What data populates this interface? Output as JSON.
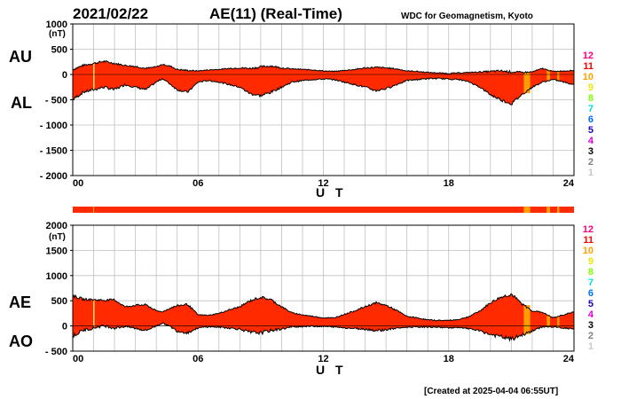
{
  "header": {
    "date": "2021/02/22",
    "title": "AE(11) (Real-Time)",
    "institution": "WDC for Geomagnetism, Kyoto"
  },
  "footer": {
    "created": "[Created at 2025-04-04 06:55UT]"
  },
  "side_labels": {
    "au": "AU",
    "al": "AL",
    "ae": "AE",
    "ao": "AO"
  },
  "legend": {
    "labels": [
      "12",
      "11",
      "10",
      "9",
      "8",
      "7",
      "6",
      "5",
      "4",
      "3",
      "2",
      "1"
    ],
    "colors": [
      "#ff0080",
      "#ff0000",
      "#ffa000",
      "#e8e800",
      "#80ff00",
      "#00e0e0",
      "#0070ff",
      "#2000c0",
      "#e000e0",
      "#000000",
      "#808080",
      "#c8c8c8"
    ]
  },
  "colors": {
    "fill": "#ff2a00",
    "orange": "#ffa000",
    "yellow": "#ffe070",
    "line": "#000000",
    "grid": "#c0c0c0"
  },
  "chart_data": [
    {
      "type": "area",
      "title": "AU / AL",
      "unit": "(nT)",
      "xlabel": "U T",
      "xlim": [
        0,
        24
      ],
      "xtick_labels": [
        "00",
        "06",
        "12",
        "18",
        "24"
      ],
      "ylim": [
        -2000,
        1000
      ],
      "ytick_labels": [
        "1000",
        "500",
        "0",
        "- 500",
        "- 1000",
        "- 1500",
        "- 2000"
      ],
      "x": [
        0,
        0.5,
        1,
        1.5,
        2,
        2.5,
        3,
        3.5,
        4,
        4.3,
        4.7,
        5,
        5.5,
        6,
        6.5,
        7,
        7.5,
        8,
        8.5,
        9,
        9.5,
        10,
        10.5,
        11,
        11.5,
        12,
        12.5,
        13,
        13.5,
        14,
        14.5,
        15,
        15.5,
        16,
        16.5,
        17,
        17.5,
        18,
        18.5,
        19,
        19.5,
        20,
        20.5,
        21,
        21.5,
        22,
        22.5,
        22.8,
        23,
        23.5,
        24
      ],
      "series": [
        {
          "name": "AU",
          "values": [
            100,
            180,
            220,
            260,
            220,
            180,
            160,
            120,
            150,
            200,
            160,
            100,
            80,
            70,
            90,
            100,
            120,
            130,
            120,
            150,
            170,
            130,
            110,
            100,
            90,
            70,
            60,
            80,
            100,
            130,
            140,
            130,
            110,
            70,
            60,
            40,
            30,
            20,
            30,
            40,
            50,
            60,
            70,
            50,
            40,
            50,
            120,
            80,
            60,
            70,
            80
          ]
        },
        {
          "name": "AL",
          "values": [
            -500,
            -350,
            -300,
            -250,
            -300,
            -200,
            -250,
            -300,
            -150,
            -80,
            -200,
            -300,
            -350,
            -150,
            -120,
            -150,
            -200,
            -250,
            -380,
            -420,
            -350,
            -250,
            -150,
            -120,
            -100,
            -90,
            -100,
            -150,
            -200,
            -250,
            -320,
            -280,
            -200,
            -120,
            -100,
            -80,
            -80,
            -90,
            -100,
            -150,
            -250,
            -400,
            -500,
            -580,
            -400,
            -250,
            -150,
            -120,
            -100,
            -150,
            -200
          ]
        }
      ]
    },
    {
      "type": "area",
      "title": "AE / AO",
      "unit": "(nT)",
      "xlabel": "U T",
      "xlim": [
        0,
        24
      ],
      "xtick_labels": [
        "00",
        "06",
        "12",
        "18",
        "24"
      ],
      "ylim": [
        -500,
        2000
      ],
      "ytick_labels": [
        "2000",
        "1500",
        "1000",
        "500",
        "0",
        "- 500"
      ],
      "x": [
        0,
        0.5,
        1,
        1.5,
        2,
        2.5,
        3,
        3.5,
        4,
        4.3,
        4.7,
        5,
        5.5,
        6,
        6.5,
        7,
        7.5,
        8,
        8.5,
        9,
        9.5,
        10,
        10.5,
        11,
        11.5,
        12,
        12.5,
        13,
        13.5,
        14,
        14.5,
        15,
        15.5,
        16,
        16.5,
        17,
        17.5,
        18,
        18.5,
        19,
        19.5,
        20,
        20.5,
        21,
        21.5,
        22,
        22.5,
        22.8,
        23,
        23.5,
        24
      ],
      "series": [
        {
          "name": "AE",
          "values": [
            600,
            530,
            520,
            510,
            520,
            380,
            410,
            420,
            300,
            280,
            360,
            400,
            430,
            220,
            210,
            250,
            320,
            380,
            500,
            570,
            520,
            380,
            260,
            220,
            190,
            160,
            160,
            230,
            300,
            380,
            460,
            410,
            310,
            190,
            160,
            120,
            110,
            110,
            130,
            190,
            300,
            460,
            570,
            630,
            440,
            300,
            270,
            200,
            160,
            220,
            280
          ]
        },
        {
          "name": "AO",
          "values": [
            -200,
            -85,
            -40,
            5,
            -40,
            -10,
            -45,
            -90,
            0,
            60,
            -20,
            -100,
            -135,
            -40,
            -15,
            -25,
            -40,
            -60,
            -130,
            -135,
            -90,
            -60,
            -20,
            -10,
            -5,
            -10,
            -20,
            -35,
            -50,
            -60,
            -90,
            -75,
            -45,
            -25,
            -20,
            -20,
            -25,
            -35,
            -35,
            -55,
            -100,
            -170,
            -215,
            -265,
            -180,
            -100,
            -15,
            -20,
            -20,
            -40,
            -60
          ]
        }
      ],
      "activity_bar_segments": [
        {
          "from": 0,
          "to": 0.98,
          "color": "#ff2a00"
        },
        {
          "from": 0.98,
          "to": 1.02,
          "color": "#ffa000"
        },
        {
          "from": 1.02,
          "to": 21.6,
          "color": "#ff2a00"
        },
        {
          "from": 21.6,
          "to": 21.9,
          "color": "#ffa000"
        },
        {
          "from": 21.9,
          "to": 22.7,
          "color": "#ff2a00"
        },
        {
          "from": 22.7,
          "to": 22.85,
          "color": "#ffa000"
        },
        {
          "from": 22.85,
          "to": 23.2,
          "color": "#ff2a00"
        },
        {
          "from": 23.2,
          "to": 23.3,
          "color": "#ffa000"
        },
        {
          "from": 23.3,
          "to": 24,
          "color": "#ff2a00"
        }
      ],
      "highlight_spans": [
        {
          "from": 0.98,
          "to": 1.02,
          "color": "#ffe070"
        },
        {
          "from": 21.6,
          "to": 21.9,
          "color": "#ffa000"
        },
        {
          "from": 22.7,
          "to": 22.85,
          "color": "#ffa000"
        },
        {
          "from": 23.2,
          "to": 23.3,
          "color": "#ffa000"
        }
      ]
    }
  ]
}
